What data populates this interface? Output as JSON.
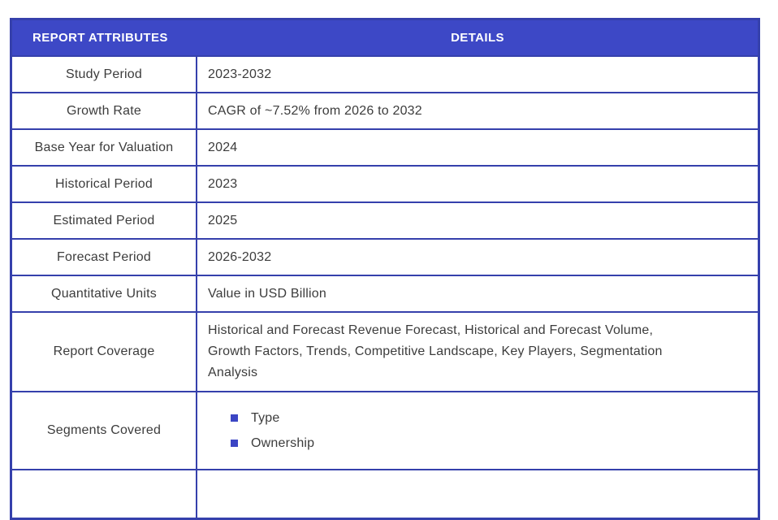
{
  "table": {
    "header": {
      "attributes_label": "REPORT ATTRIBUTES",
      "details_label": "DETAILS"
    },
    "rows": [
      {
        "attribute": "Study Period",
        "detail": "2023-2032"
      },
      {
        "attribute": "Growth Rate",
        "detail": "CAGR of ~7.52% from 2026 to 2032"
      },
      {
        "attribute": "Base Year for Valuation",
        "detail": "2024"
      },
      {
        "attribute": "Historical Period",
        "detail": "2023"
      },
      {
        "attribute": "Estimated Period",
        "detail": "2025"
      },
      {
        "attribute": "Forecast Period",
        "detail": "2026-2032"
      },
      {
        "attribute": "Quantitative Units",
        "detail": "Value in USD Billion"
      },
      {
        "attribute": "Report Coverage",
        "detail": "Historical and Forecast Revenue Forecast, Historical and Forecast Volume, Growth Factors, Trends, Competitive Landscape, Key Players, Segmentation Analysis"
      },
      {
        "attribute": "Segments Covered",
        "items": [
          "Type",
          "Ownership"
        ]
      }
    ],
    "colors": {
      "header_bg": "#3d48c6",
      "border": "#3540ac",
      "bullet": "#3b45c4",
      "text": "#3c3c3c",
      "header_text": "#ffffff"
    }
  }
}
